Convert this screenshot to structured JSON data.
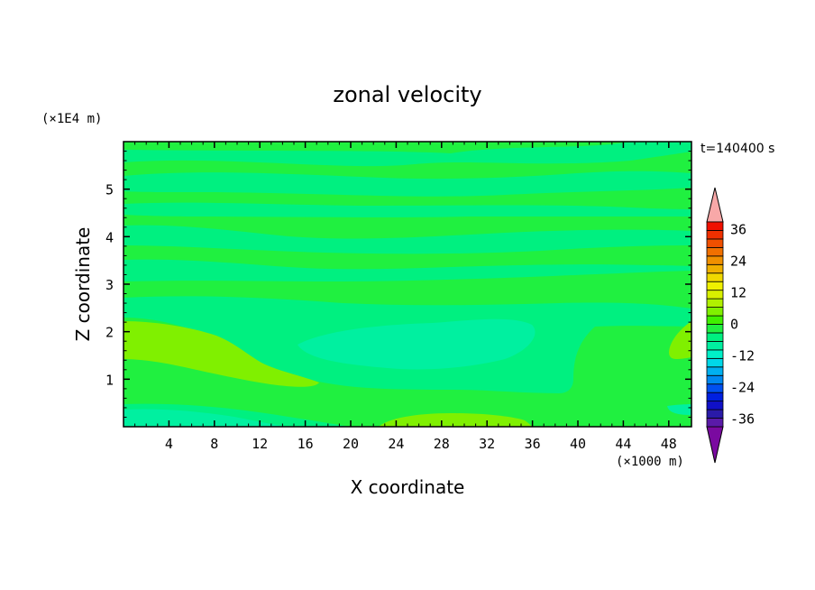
{
  "chart_data": {
    "type": "heatmap",
    "title": "zonal velocity",
    "xlabel": "X coordinate",
    "ylabel": "Z coordinate",
    "x_unit": "(×1000 m)",
    "y_unit": "(×1E4 m)",
    "time_label": "t=140400 s",
    "xlim": [
      0,
      50
    ],
    "ylim": [
      0,
      6
    ],
    "x_ticks": [
      4,
      8,
      12,
      16,
      20,
      24,
      28,
      32,
      36,
      40,
      44,
      48
    ],
    "y_ticks": [
      1,
      2,
      3,
      4,
      5
    ],
    "colorbar": {
      "levels": [
        -42,
        -39,
        -36,
        -33,
        -30,
        -27,
        -24,
        -21,
        -18,
        -15,
        -12,
        -9,
        -6,
        -3,
        0,
        3,
        6,
        9,
        12,
        15,
        18,
        21,
        24,
        27,
        30,
        33,
        36,
        39,
        42
      ],
      "tick_labels": [
        "36",
        "24",
        "12",
        "0",
        "-12",
        "-24",
        "-36"
      ],
      "tick_values": [
        36,
        24,
        12,
        0,
        -12,
        -24,
        -36
      ],
      "colors": [
        "#7a0aa0",
        "#5a1aa8",
        "#2a1aa8",
        "#1010c8",
        "#0020e0",
        "#0050f0",
        "#0088f0",
        "#00b0f0",
        "#00d8e8",
        "#00f0c8",
        "#00f0a0",
        "#00f080",
        "#20f040",
        "#40f000",
        "#80f000",
        "#b0f000",
        "#d8f000",
        "#f0f000",
        "#f0d800",
        "#f0b000",
        "#f09000",
        "#f07000",
        "#f05000",
        "#f03000",
        "#f01000",
        "#f8a8a8"
      ]
    },
    "field_colors": {
      "band_a": "#20f040",
      "band_b": "#00f080",
      "band_c": "#00f0a0",
      "band_d": "#80f000",
      "band_e": "#00f0c8"
    }
  }
}
